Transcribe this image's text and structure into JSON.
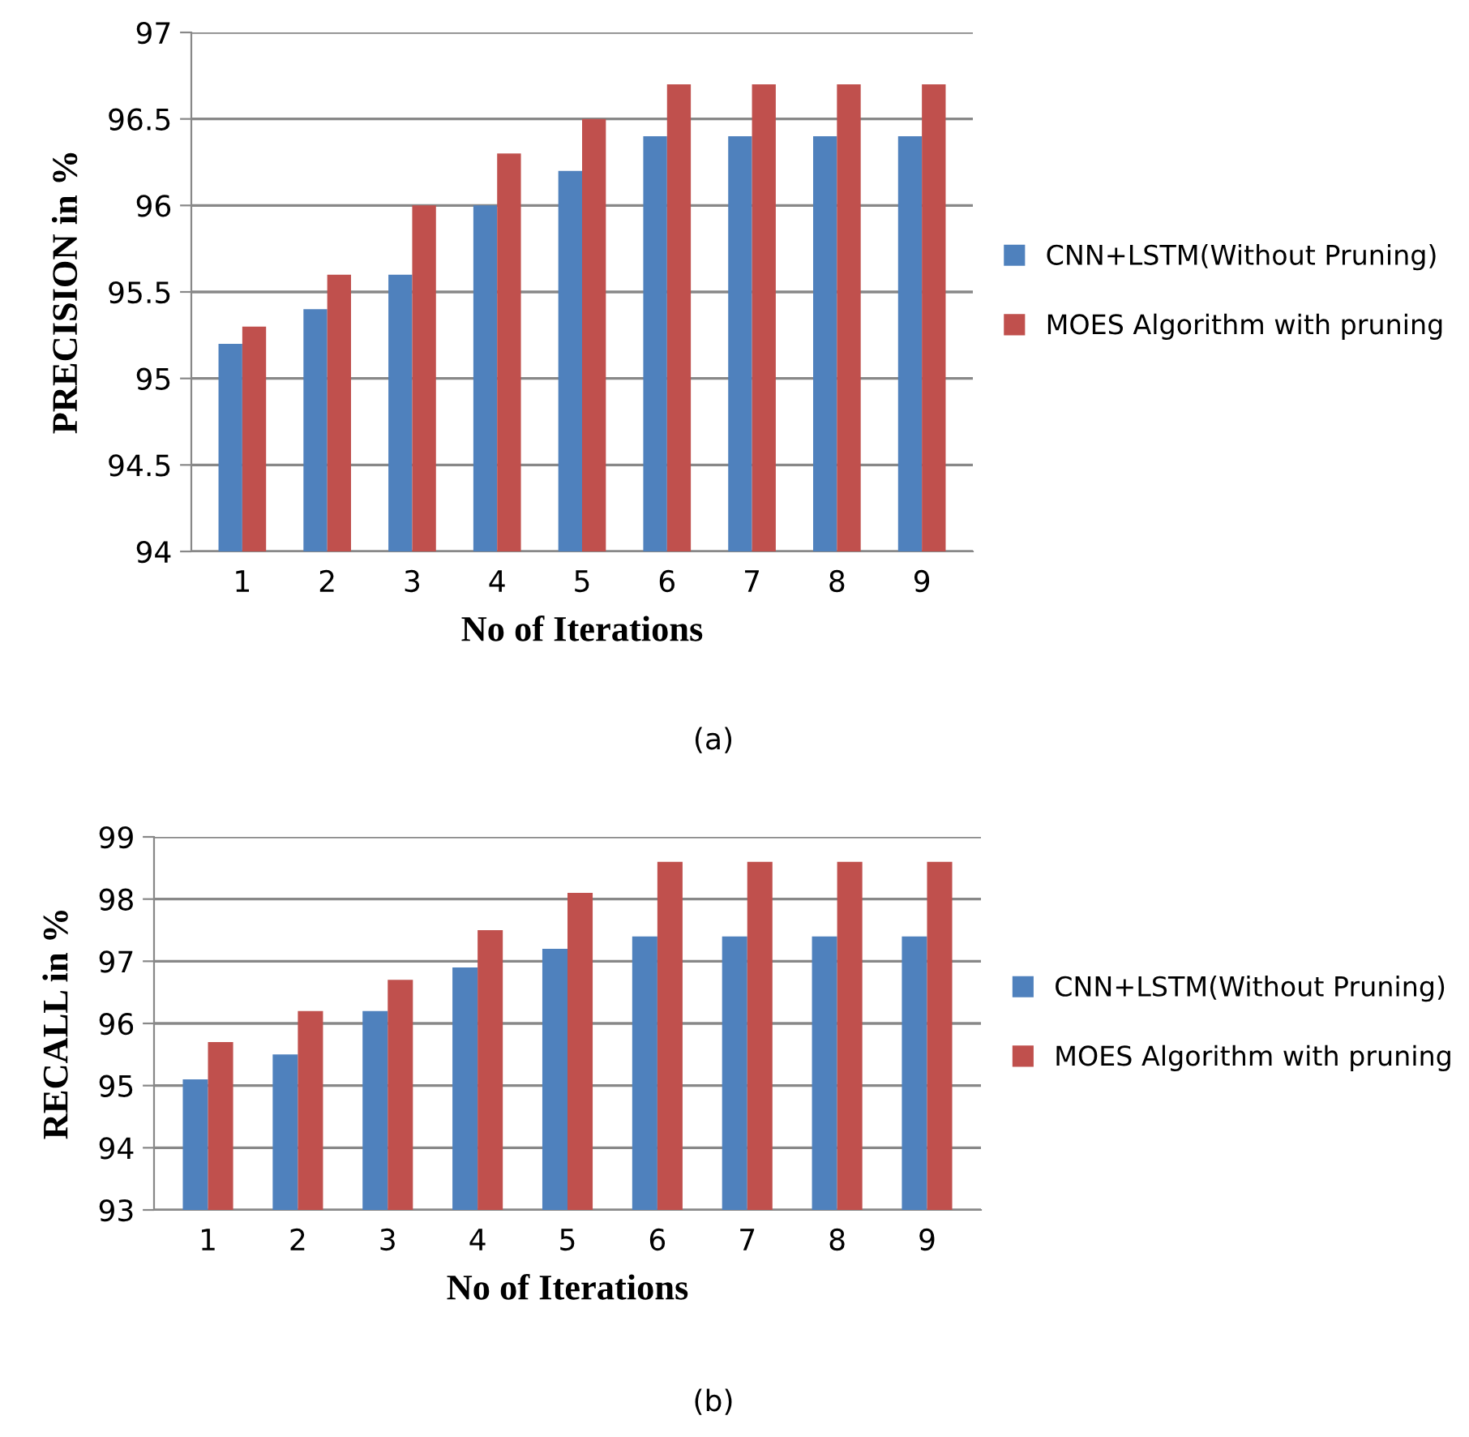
{
  "chart_data": [
    {
      "type": "bar",
      "categories": [
        "1",
        "2",
        "3",
        "4",
        "5",
        "6",
        "7",
        "8",
        "9"
      ],
      "xlabel": "No of Iterations",
      "ylabel": "PRECISION in %",
      "ylim": [
        94,
        97
      ],
      "yticks": [
        94,
        94.5,
        95,
        95.5,
        96,
        96.5,
        97
      ],
      "grid": "y",
      "legend": "right",
      "annotations": [
        "(a)"
      ],
      "series": [
        {
          "name": "CNN+LSTM(Without Pruning)",
          "color": "#4f81bd",
          "values": [
            95.2,
            95.4,
            95.6,
            96.0,
            96.2,
            96.4,
            96.4,
            96.4,
            96.4
          ]
        },
        {
          "name": "MOES Algorithm with pruning",
          "color": "#c0504d",
          "values": [
            95.3,
            95.6,
            96.0,
            96.3,
            96.5,
            96.7,
            96.7,
            96.7,
            96.7
          ]
        }
      ]
    },
    {
      "type": "bar",
      "categories": [
        "1",
        "2",
        "3",
        "4",
        "5",
        "6",
        "7",
        "8",
        "9"
      ],
      "xlabel": "No of Iterations",
      "ylabel": "RECALL in %",
      "ylim": [
        93,
        99
      ],
      "yticks": [
        93,
        94,
        95,
        96,
        97,
        98,
        99
      ],
      "grid": "y",
      "legend": "right",
      "annotations": [
        "(b)"
      ],
      "series": [
        {
          "name": "CNN+LSTM(Without Pruning)",
          "color": "#4f81bd",
          "values": [
            95.1,
            95.5,
            96.2,
            96.9,
            97.2,
            97.4,
            97.4,
            97.4,
            97.4
          ]
        },
        {
          "name": "MOES Algorithm with pruning",
          "color": "#c0504d",
          "values": [
            95.7,
            96.2,
            96.7,
            97.5,
            98.1,
            98.6,
            98.6,
            98.6,
            98.6
          ]
        }
      ]
    }
  ]
}
